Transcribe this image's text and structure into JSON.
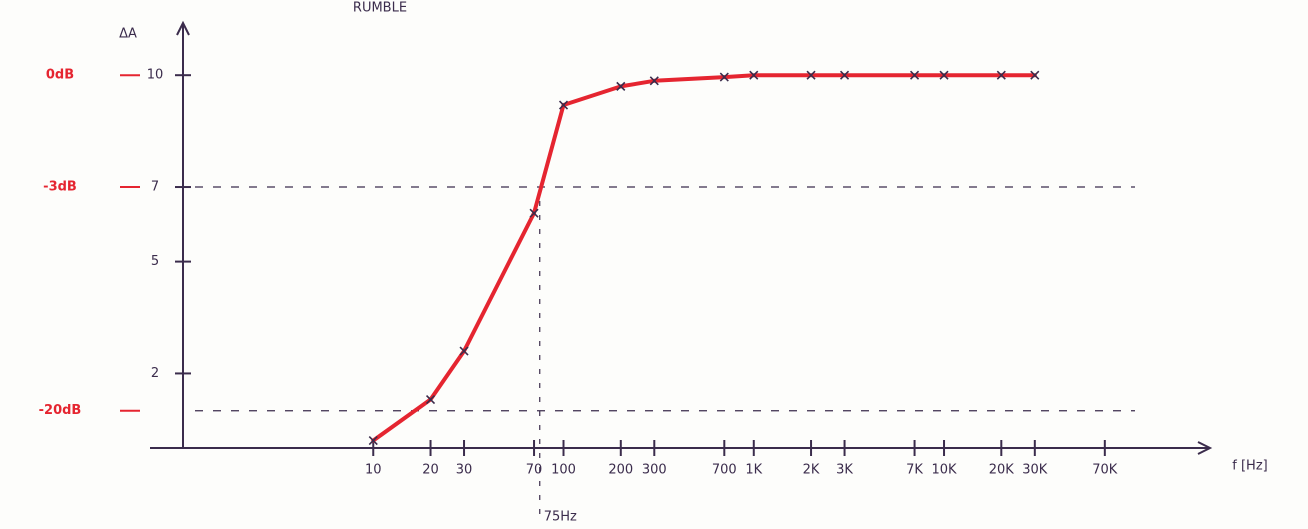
{
  "chart_data": {
    "type": "line",
    "title": "RUMBLE",
    "y_label": "ΔA",
    "x_label": "f [Hz]",
    "x": [
      10,
      20,
      30,
      70,
      100,
      200,
      300,
      700,
      1000,
      2000,
      3000,
      7000,
      10000,
      20000,
      30000
    ],
    "values": [
      0.2,
      1.3,
      2.6,
      6.3,
      9.2,
      9.7,
      9.85,
      9.95,
      10,
      10,
      10,
      10,
      10,
      10,
      10
    ],
    "color": "#e52530",
    "ink": "#3b2c4c",
    "xlog": true,
    "xlim": [
      1,
      250000
    ],
    "xticks": [
      10,
      20,
      30,
      70,
      100,
      200,
      300,
      700,
      {
        "value": 1000,
        "label": "1K"
      },
      {
        "value": 2000,
        "label": "2K"
      },
      {
        "value": 3000,
        "label": "3K"
      },
      {
        "value": 7000,
        "label": "7K"
      },
      {
        "value": 10000,
        "label": "10K"
      },
      {
        "value": 20000,
        "label": "20K"
      },
      {
        "value": 30000,
        "label": "30K"
      },
      {
        "value": 70000,
        "label": "70K"
      }
    ],
    "ylim": [
      0,
      11.4
    ],
    "yticks": [
      2,
      5,
      7,
      10
    ],
    "db_labels": [
      {
        "value": 10,
        "label": "0dB"
      },
      {
        "value": 7,
        "label": "-3dB"
      },
      {
        "value": 1,
        "label": "-20dB"
      }
    ],
    "db_color": "#e52530",
    "cutoff": {
      "value": 75,
      "label": "75Hz"
    }
  }
}
